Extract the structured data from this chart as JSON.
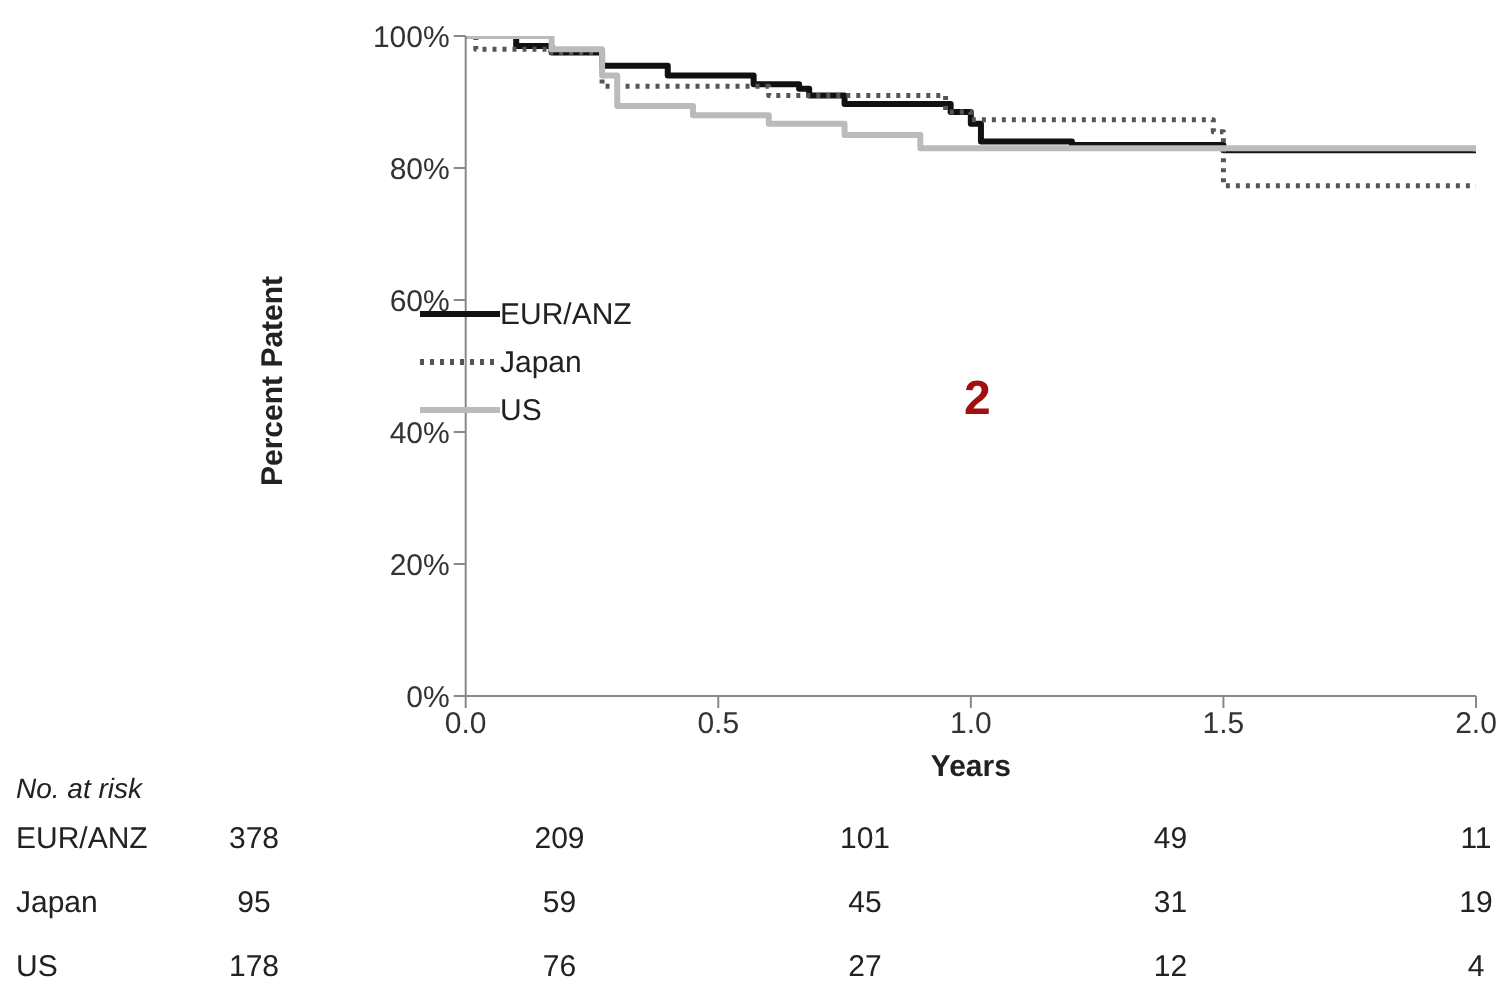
{
  "chart_data": {
    "type": "step",
    "xlabel": "Years",
    "ylabel": "Percent Patent",
    "xlim": [
      0,
      2
    ],
    "xticks": [
      {
        "value": 0,
        "label": "0.0"
      },
      {
        "value": 0.5,
        "label": "0.5"
      },
      {
        "value": 1,
        "label": "1.0"
      },
      {
        "value": 1.5,
        "label": "1.5"
      },
      {
        "value": 2,
        "label": "2.0"
      }
    ],
    "ylim": [
      0,
      100
    ],
    "yticks": [
      {
        "value": 0,
        "label": "0%"
      },
      {
        "value": 20,
        "label": "20%"
      },
      {
        "value": 40,
        "label": "40%"
      },
      {
        "value": 60,
        "label": "60%"
      },
      {
        "value": 80,
        "label": "80%"
      },
      {
        "value": 100,
        "label": "100%"
      }
    ],
    "legend": "left",
    "marker": "none",
    "series": [
      {
        "name": "EUR/ANZ",
        "color": "#111111",
        "line_style": "solid",
        "x": [
          0,
          0.1,
          0.17,
          0.27,
          0.4,
          0.57,
          0.66,
          0.68,
          0.75,
          0.96,
          1.0,
          1.02,
          1.2,
          1.5,
          2.0
        ],
        "values": [
          100,
          98.5,
          97.5,
          95.5,
          94,
          92.7,
          92,
          91,
          89.7,
          88.5,
          86.7,
          84,
          83.5,
          82.7,
          82.5
        ]
      },
      {
        "name": "Japan",
        "color": "#555555",
        "line_style": "dotted",
        "x": [
          0,
          0.02,
          0.17,
          0.27,
          0.6,
          0.95,
          1.0,
          1.48,
          1.5,
          2.0
        ],
        "values": [
          100,
          98,
          97.5,
          92.4,
          91,
          88.5,
          87.3,
          85.5,
          77.3,
          77.3
        ]
      },
      {
        "name": "US",
        "color": "#bbbbbb",
        "line_style": "solid",
        "x": [
          0,
          0.17,
          0.27,
          0.3,
          0.45,
          0.6,
          0.75,
          0.9,
          2.0
        ],
        "values": [
          100,
          98,
          94,
          89.4,
          88,
          86.7,
          85,
          83,
          82.5
        ]
      }
    ],
    "annotations": [
      "2",
      "No. at risk",
      "EUR/ANZ",
      "378",
      "209",
      "101",
      "49",
      "11",
      "Japan",
      "95",
      "59",
      "45",
      "31",
      "19",
      "US",
      "178",
      "76",
      "27",
      "12",
      "4"
    ]
  }
}
